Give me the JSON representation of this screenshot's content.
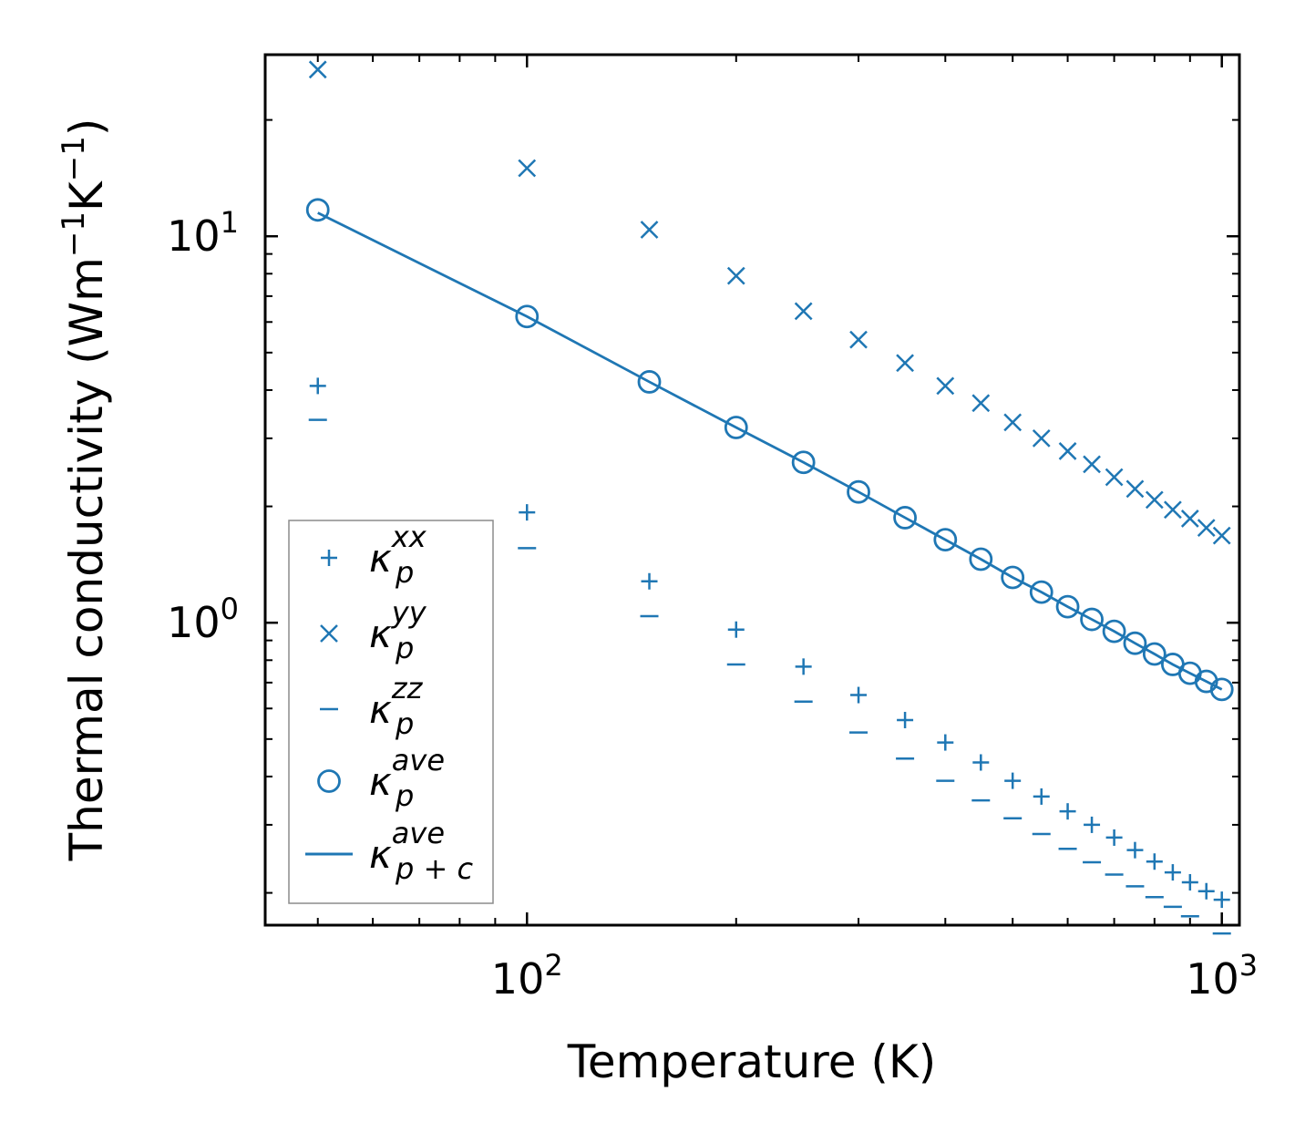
{
  "colors": {
    "series": "#1f77b4",
    "axis": "#000000",
    "legend_border": "#8c8c8c",
    "background": "#ffffff"
  },
  "chart_data": {
    "type": "scatter",
    "title": "",
    "xlabel": "Temperature (K)",
    "ylabel_main": "Thermal conductivity (Wm",
    "ylabel_exp1": "−1",
    "ylabel_mid": "K",
    "ylabel_exp2": "−1",
    "ylabel_close": ")",
    "xscale": "log",
    "yscale": "log",
    "xlim": [
      42,
      1060
    ],
    "ylim": [
      0.165,
      29.5
    ],
    "x_ticks": [
      {
        "value": 100,
        "base": "10",
        "exp": "2"
      },
      {
        "value": 1000,
        "base": "10",
        "exp": "3"
      }
    ],
    "y_ticks": [
      {
        "value": 1,
        "base": "10",
        "exp": "0"
      },
      {
        "value": 10,
        "base": "10",
        "exp": "1"
      }
    ],
    "x_minor_ticks": [
      50,
      60,
      70,
      80,
      90,
      200,
      300,
      400,
      500,
      600,
      700,
      800,
      900
    ],
    "y_minor_ticks": [
      0.2,
      0.3,
      0.4,
      0.5,
      0.6,
      0.7,
      0.8,
      0.9,
      2,
      3,
      4,
      5,
      6,
      7,
      8,
      9,
      20
    ],
    "x": [
      50,
      100,
      150,
      200,
      250,
      300,
      350,
      400,
      450,
      500,
      550,
      600,
      650,
      700,
      750,
      800,
      850,
      900,
      950,
      1000
    ],
    "series": [
      {
        "name": "kappa_p_xx",
        "label_base": "κ",
        "label_sub": "p",
        "label_sup": "xx",
        "marker": "plus",
        "values": [
          4.1,
          1.93,
          1.28,
          0.96,
          0.77,
          0.65,
          0.56,
          0.49,
          0.435,
          0.39,
          0.355,
          0.325,
          0.3,
          0.278,
          0.258,
          0.241,
          0.226,
          0.213,
          0.202,
          0.192
        ]
      },
      {
        "name": "kappa_p_yy",
        "label_base": "κ",
        "label_sub": "p",
        "label_sup": "yy",
        "marker": "x",
        "values": [
          27,
          15,
          10.4,
          7.9,
          6.4,
          5.4,
          4.7,
          4.1,
          3.7,
          3.3,
          3.0,
          2.78,
          2.57,
          2.38,
          2.22,
          2.08,
          1.96,
          1.86,
          1.76,
          1.68
        ]
      },
      {
        "name": "kappa_p_zz",
        "label_base": "κ",
        "label_sub": "p",
        "label_sup": "zz",
        "marker": "minus",
        "values": [
          3.35,
          1.56,
          1.04,
          0.78,
          0.625,
          0.52,
          0.445,
          0.39,
          0.347,
          0.312,
          0.284,
          0.26,
          0.24,
          0.223,
          0.208,
          0.195,
          0.184,
          0.174,
          0.165,
          0.157
        ]
      },
      {
        "name": "kappa_p_ave",
        "label_base": "κ",
        "label_sub": "p",
        "label_sup": "ave",
        "marker": "circle",
        "values": [
          11.7,
          6.2,
          4.2,
          3.2,
          2.6,
          2.18,
          1.87,
          1.64,
          1.46,
          1.31,
          1.2,
          1.1,
          1.02,
          0.95,
          0.885,
          0.83,
          0.78,
          0.74,
          0.705,
          0.672
        ]
      },
      {
        "name": "kappa_p_plus_c_ave",
        "label_base": "κ",
        "label_sub": "p + c",
        "label_sup": "ave",
        "marker": "line",
        "values": [
          11.5,
          6.2,
          4.2,
          3.2,
          2.6,
          2.18,
          1.87,
          1.64,
          1.46,
          1.31,
          1.2,
          1.1,
          1.02,
          0.95,
          0.885,
          0.83,
          0.78,
          0.74,
          0.705,
          0.672
        ]
      }
    ],
    "legend": {
      "position": "lower-left"
    }
  }
}
